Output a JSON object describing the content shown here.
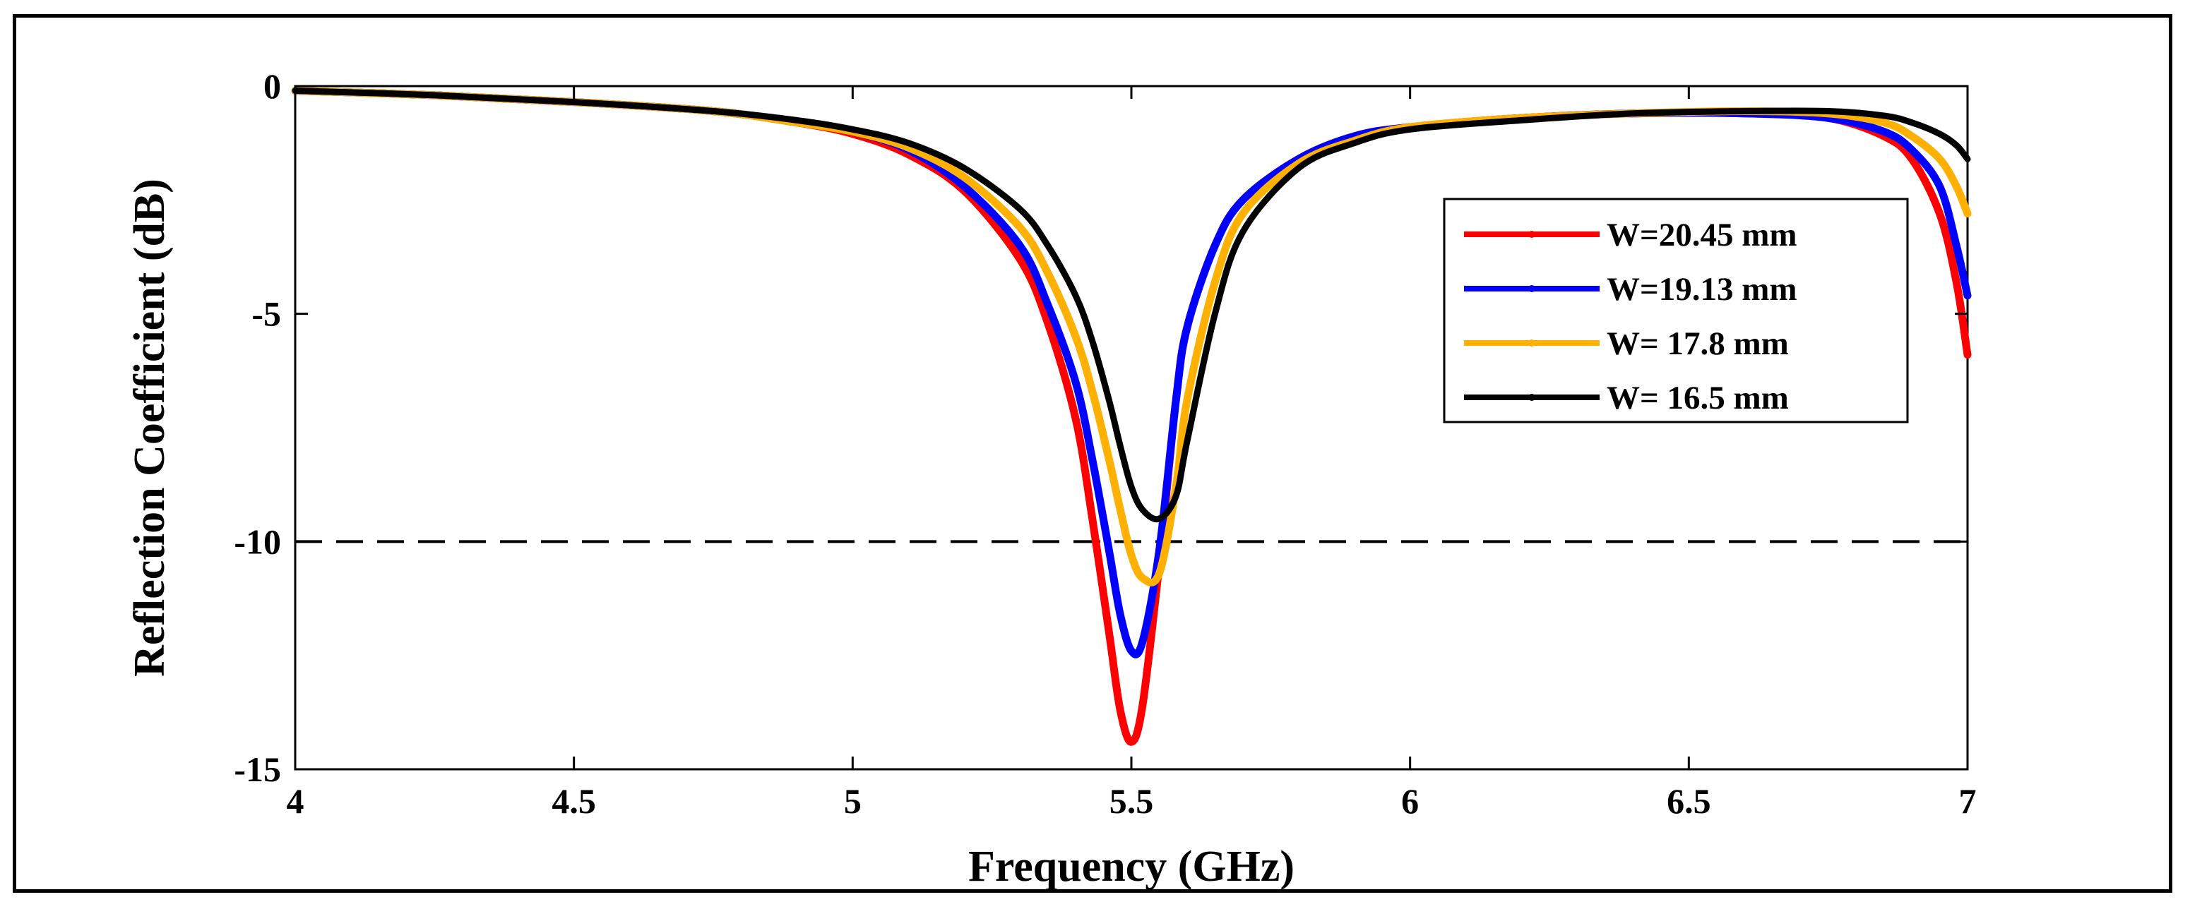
{
  "chart_data": {
    "type": "line",
    "xlabel": "Frequency (GHz)",
    "ylabel": "Reflection Coefficient (dB)",
    "xlim": [
      4,
      7
    ],
    "ylim": [
      -15,
      0
    ],
    "xticks": [
      4,
      4.5,
      5,
      5.5,
      6,
      6.5,
      7
    ],
    "xtick_labels": [
      "4",
      "4.5",
      "5",
      "5.5",
      "6",
      "6.5",
      "7"
    ],
    "yticks": [
      0,
      -5,
      -10,
      -15
    ],
    "ytick_labels": [
      "0",
      "-5",
      "-10",
      "-15"
    ],
    "grid": false,
    "legend_position": "right",
    "reference_line": {
      "y": -10,
      "style": "dashed",
      "color": "#000000"
    },
    "x": [
      4.0,
      4.25,
      4.5,
      4.75,
      4.9,
      5.0,
      5.1,
      5.2,
      5.3,
      5.35,
      5.4,
      5.43,
      5.46,
      5.48,
      5.5,
      5.52,
      5.55,
      5.58,
      5.6,
      5.65,
      5.7,
      5.8,
      5.9,
      6.0,
      6.2,
      6.4,
      6.6,
      6.75,
      6.85,
      6.9,
      6.95,
      6.98,
      7.0
    ],
    "series": [
      {
        "name": "W=20.45 mm",
        "color": "#ff0000",
        "values": [
          -0.1,
          -0.2,
          -0.35,
          -0.55,
          -0.8,
          -1.05,
          -1.5,
          -2.3,
          -3.8,
          -5.2,
          -7.3,
          -9.5,
          -12.0,
          -13.7,
          -14.4,
          -13.6,
          -10.5,
          -6.9,
          -5.3,
          -3.5,
          -2.5,
          -1.6,
          -1.1,
          -0.9,
          -0.7,
          -0.6,
          -0.6,
          -0.7,
          -1.1,
          -1.6,
          -2.8,
          -4.3,
          -5.9
        ]
      },
      {
        "name": "W=19.13 mm",
        "color": "#0000ff",
        "values": [
          -0.1,
          -0.2,
          -0.35,
          -0.55,
          -0.8,
          -1.0,
          -1.4,
          -2.2,
          -3.5,
          -4.8,
          -6.5,
          -8.2,
          -10.2,
          -11.6,
          -12.4,
          -12.2,
          -10.2,
          -6.9,
          -5.3,
          -3.5,
          -2.5,
          -1.6,
          -1.1,
          -0.9,
          -0.7,
          -0.6,
          -0.6,
          -0.7,
          -1.0,
          -1.4,
          -2.2,
          -3.5,
          -4.6
        ]
      },
      {
        "name": "W= 17.8 mm",
        "color": "#ffb000",
        "values": [
          -0.1,
          -0.2,
          -0.35,
          -0.55,
          -0.8,
          -1.0,
          -1.35,
          -2.0,
          -3.1,
          -4.1,
          -5.5,
          -6.7,
          -8.2,
          -9.3,
          -10.3,
          -10.8,
          -10.7,
          -8.8,
          -6.9,
          -4.3,
          -2.8,
          -1.7,
          -1.2,
          -0.9,
          -0.7,
          -0.6,
          -0.55,
          -0.6,
          -0.8,
          -1.1,
          -1.6,
          -2.2,
          -2.8
        ]
      },
      {
        "name": "W= 16.5 mm",
        "color": "#000000",
        "values": [
          -0.1,
          -0.2,
          -0.35,
          -0.55,
          -0.75,
          -0.95,
          -1.25,
          -1.8,
          -2.7,
          -3.5,
          -4.6,
          -5.6,
          -6.9,
          -7.9,
          -8.8,
          -9.3,
          -9.5,
          -9.0,
          -7.8,
          -5.0,
          -3.2,
          -1.8,
          -1.25,
          -0.95,
          -0.75,
          -0.6,
          -0.55,
          -0.55,
          -0.65,
          -0.8,
          -1.05,
          -1.3,
          -1.6
        ]
      }
    ]
  }
}
